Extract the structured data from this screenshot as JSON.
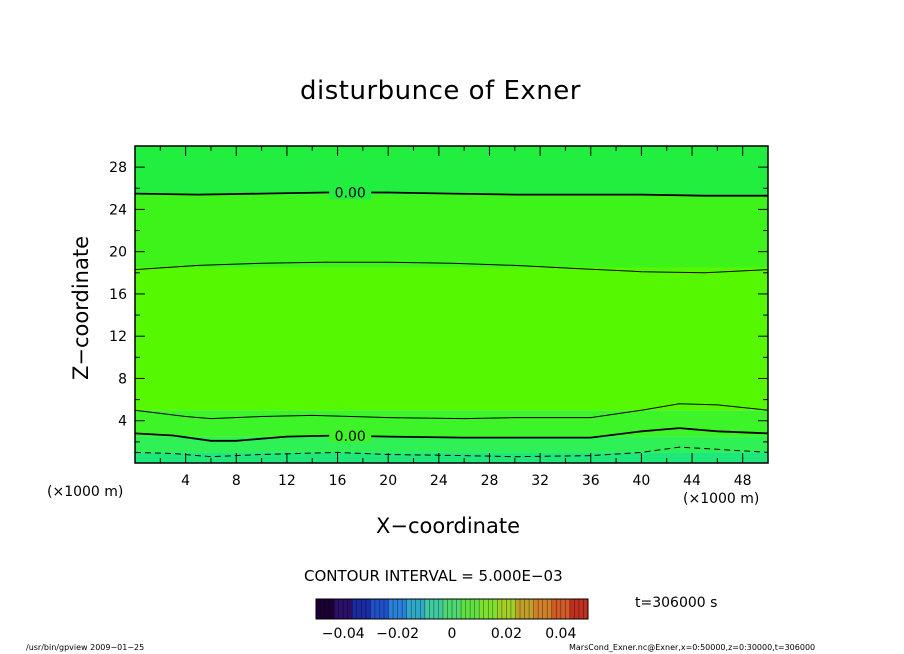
{
  "chart_data": {
    "type": "contour",
    "title": "disturbunce of Exner",
    "xlabel": "X−coordinate",
    "ylabel": "Z−coordinate",
    "x_unit_left": "(×1000 m)",
    "x_unit_right": "(×1000 m)",
    "xlim": [
      0,
      50
    ],
    "ylim": [
      0,
      30
    ],
    "x_ticks": [
      4,
      8,
      12,
      16,
      20,
      24,
      28,
      32,
      36,
      40,
      44,
      48
    ],
    "x_tick_labels": [
      "4",
      "8",
      "12",
      "16",
      "20",
      "24",
      "28",
      "32",
      "36",
      "40",
      "44",
      "48"
    ],
    "y_ticks": [
      4,
      8,
      12,
      16,
      20,
      24,
      28
    ],
    "y_tick_labels": [
      "4",
      "8",
      "12",
      "16",
      "20",
      "24",
      "28"
    ],
    "contour_interval_text": "CONTOUR INTERVAL = 5.000E−03",
    "contour_lines": [
      {
        "level": 0.0,
        "style": "thick",
        "label": "0.00",
        "label_at": 17,
        "x": [
          0,
          5,
          10,
          15,
          20,
          25,
          30,
          35,
          40,
          45,
          50
        ],
        "z": [
          25.5,
          25.4,
          25.5,
          25.6,
          25.6,
          25.5,
          25.4,
          25.4,
          25.4,
          25.3,
          25.3
        ]
      },
      {
        "level": 0.005,
        "style": "thin",
        "label": "",
        "x": [
          0,
          5,
          10,
          15,
          20,
          25,
          30,
          35,
          40,
          45,
          50
        ],
        "z": [
          18.3,
          18.7,
          18.9,
          19.0,
          19.0,
          18.9,
          18.7,
          18.4,
          18.1,
          18.0,
          18.3
        ]
      },
      {
        "level": 0.005,
        "style": "thin",
        "label": "",
        "x": [
          0,
          4,
          6,
          10,
          14,
          20,
          26,
          30,
          36,
          40,
          43,
          46,
          50
        ],
        "z": [
          5.0,
          4.4,
          4.2,
          4.4,
          4.5,
          4.3,
          4.2,
          4.3,
          4.3,
          5.0,
          5.6,
          5.5,
          5.0
        ]
      },
      {
        "level": 0.0,
        "style": "thick",
        "label": "0.00",
        "label_at": 17,
        "x": [
          0,
          3,
          6,
          8,
          12,
          16,
          20,
          26,
          30,
          36,
          40,
          43,
          46,
          50
        ],
        "z": [
          2.8,
          2.6,
          2.1,
          2.1,
          2.5,
          2.6,
          2.5,
          2.4,
          2.4,
          2.4,
          3.0,
          3.3,
          3.0,
          2.8
        ]
      },
      {
        "level": -0.005,
        "style": "dashed",
        "label": "",
        "x": [
          0,
          3,
          6,
          10,
          16,
          20,
          26,
          30,
          36,
          40,
          43,
          46,
          50
        ],
        "z": [
          1.0,
          0.9,
          0.6,
          0.8,
          1.0,
          0.8,
          0.7,
          0.6,
          0.7,
          1.0,
          1.5,
          1.3,
          1.0
        ]
      }
    ],
    "shading_bands": [
      {
        "z0": 0,
        "z1": 1.0,
        "color": "#1ee87a"
      },
      {
        "z0": 1.0,
        "z1": 2.5,
        "color": "#2ff055"
      },
      {
        "z0": 2.5,
        "z1": 5.0,
        "color": "#3cf428"
      },
      {
        "z0": 5.0,
        "z1": 18.5,
        "color": "#55f800"
      },
      {
        "z0": 18.5,
        "z1": 25.4,
        "color": "#3ef31a"
      },
      {
        "z0": 25.4,
        "z1": 30,
        "color": "#22ee40"
      }
    ],
    "colorbar": {
      "min": -0.05,
      "max": 0.05,
      "tick_values": [
        -0.04,
        -0.02,
        0,
        0.02,
        0.04
      ],
      "tick_labels": [
        "−0.04",
        "−0.02",
        "0",
        "0.02",
        "0.04"
      ],
      "colors": [
        "#1a0033",
        "#2a1066",
        "#1a2aa0",
        "#1f50c8",
        "#2a80d8",
        "#30a8c8",
        "#40c8a0",
        "#50d870",
        "#60e040",
        "#80e030",
        "#a0d028",
        "#c0a028",
        "#d08028",
        "#d05a28",
        "#c03020"
      ]
    }
  },
  "time_text": "t=306000  s",
  "footer_left": "/usr/bin/gpview   2009−01−25",
  "footer_right": "MarsCond_Exner.nc@Exner,x=0:50000,z=0:30000,t=306000"
}
